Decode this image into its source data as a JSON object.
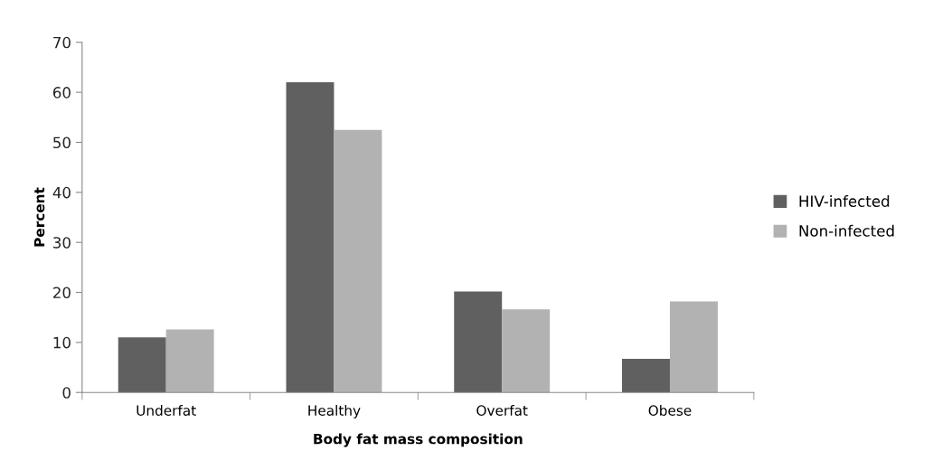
{
  "chart_data": {
    "type": "bar",
    "xlabel": "Body fat mass composition",
    "ylabel": "Percent",
    "categories": [
      "Underfat",
      "Healthy",
      "Overfat",
      "Obese"
    ],
    "series": [
      {
        "name": "HIV-infected",
        "color": "#606060",
        "values": [
          11.0,
          62.0,
          20.2,
          6.7
        ]
      },
      {
        "name": "Non-infected",
        "color": "#b2b2b2",
        "values": [
          12.6,
          52.5,
          16.6,
          18.2
        ]
      }
    ],
    "ylim": [
      0,
      70
    ],
    "yticks": [
      0,
      10,
      20,
      30,
      40,
      50,
      60,
      70
    ],
    "grid": false,
    "legend": "right"
  }
}
